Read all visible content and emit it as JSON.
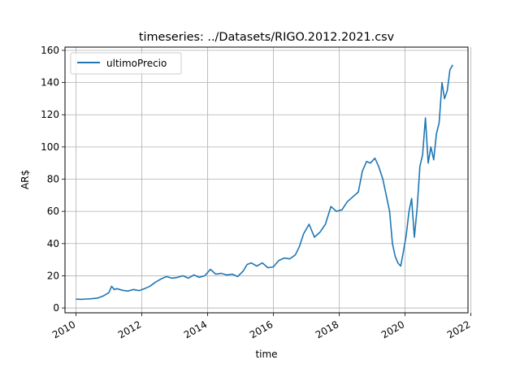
{
  "chart_data": {
    "type": "line",
    "title": "timeseries: ../Datasets/RIGO.2012.2021.csv",
    "xlabel": "time",
    "ylabel": "AR$",
    "xlim": [
      "2009-09-01",
      "2021-12-01"
    ],
    "ylim": [
      -3,
      162
    ],
    "x_ticks": [
      "2010",
      "2012",
      "2014",
      "2016",
      "2018",
      "2020",
      "2022"
    ],
    "y_ticks": [
      "0",
      "20",
      "40",
      "60",
      "80",
      "100",
      "120",
      "140",
      "160"
    ],
    "grid": true,
    "legend_position": "top-left",
    "series": [
      {
        "name": "ultimoPrecio",
        "color": "#1f77b4",
        "x": [
          "2010-01-01",
          "2010-03-01",
          "2010-05-01",
          "2010-07-01",
          "2010-09-01",
          "2010-11-01",
          "2011-01-01",
          "2011-02-01",
          "2011-03-01",
          "2011-04-01",
          "2011-06-01",
          "2011-08-01",
          "2011-10-01",
          "2011-12-01",
          "2012-02-01",
          "2012-04-01",
          "2012-06-01",
          "2012-08-01",
          "2012-10-01",
          "2012-12-01",
          "2013-02-01",
          "2013-04-01",
          "2013-06-01",
          "2013-08-01",
          "2013-10-01",
          "2013-12-01",
          "2014-02-01",
          "2014-04-01",
          "2014-06-01",
          "2014-08-01",
          "2014-10-01",
          "2014-12-01",
          "2015-02-01",
          "2015-03-15",
          "2015-05-01",
          "2015-07-01",
          "2015-09-01",
          "2015-11-01",
          "2016-01-01",
          "2016-03-01",
          "2016-05-01",
          "2016-07-01",
          "2016-09-01",
          "2016-10-15",
          "2016-12-01",
          "2017-02-01",
          "2017-04-01",
          "2017-06-01",
          "2017-08-01",
          "2017-10-01",
          "2017-12-01",
          "2018-02-01",
          "2018-04-01",
          "2018-06-01",
          "2018-08-01",
          "2018-09-15",
          "2018-11-01",
          "2018-12-15",
          "2019-02-01",
          "2019-03-15",
          "2019-05-01",
          "2019-06-15",
          "2019-07-15",
          "2019-08-15",
          "2019-09-15",
          "2019-10-15",
          "2019-11-15",
          "2019-12-15",
          "2020-01-15",
          "2020-02-15",
          "2020-03-15",
          "2020-04-15",
          "2020-05-15",
          "2020-06-15",
          "2020-07-15",
          "2020-08-15",
          "2020-09-15",
          "2020-10-15",
          "2020-11-15",
          "2020-12-15",
          "2021-01-15",
          "2021-02-15",
          "2021-03-15",
          "2021-04-15",
          "2021-05-15",
          "2021-06-15"
        ],
        "values": [
          5.5,
          5.4,
          5.6,
          5.8,
          6.2,
          7.5,
          9.5,
          13.5,
          11.5,
          12.0,
          11.0,
          10.5,
          11.5,
          10.8,
          12.0,
          13.5,
          16.0,
          18.0,
          19.5,
          18.5,
          19.0,
          20.0,
          18.5,
          20.5,
          19.0,
          20.0,
          24.0,
          21.0,
          21.5,
          20.5,
          21.0,
          19.5,
          23.0,
          27.0,
          28.0,
          26.0,
          28.0,
          25.0,
          25.5,
          29.5,
          31.0,
          30.5,
          33.0,
          38.0,
          46.0,
          52.0,
          44.0,
          47.0,
          52.0,
          63.0,
          60.0,
          61.0,
          66.0,
          69.0,
          72.0,
          85.0,
          91.0,
          90.0,
          93.0,
          88.0,
          80.0,
          68.0,
          60.0,
          40.0,
          32.0,
          28.0,
          26.0,
          35.0,
          45.0,
          60.0,
          68.0,
          44.0,
          62.0,
          88.0,
          95.0,
          118.0,
          90.0,
          100.0,
          92.0,
          108.0,
          115.0,
          140.0,
          130.0,
          135.0,
          148.0,
          151.0
        ]
      }
    ]
  }
}
